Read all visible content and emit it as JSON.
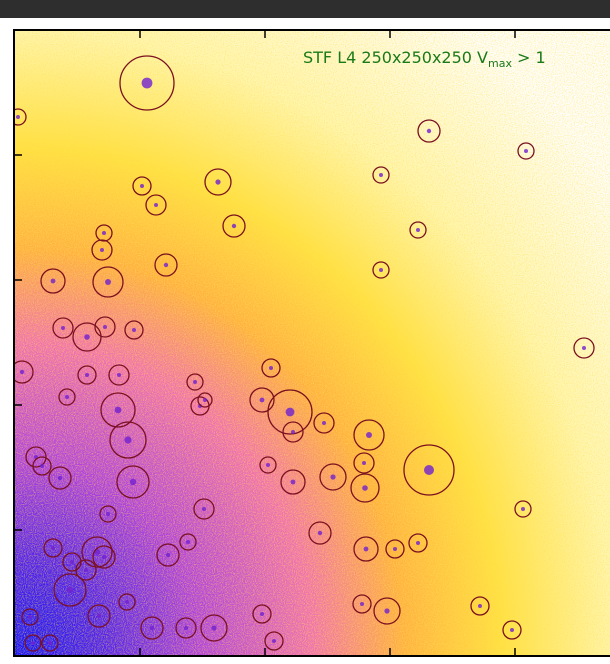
{
  "annotation": {
    "text": "STF L4 250x250x250 V",
    "subscript": "max",
    "rest": " > 1"
  }
}
